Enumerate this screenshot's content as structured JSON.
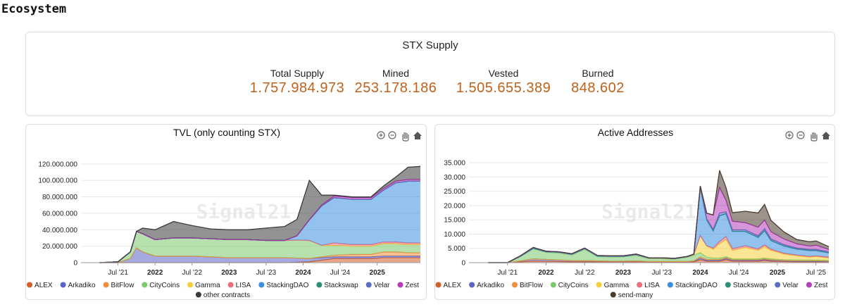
{
  "page": {
    "title": "Ecosystem"
  },
  "supply": {
    "title": "STX Supply",
    "stats": [
      {
        "label": "Total Supply",
        "value": "1.757.984.973"
      },
      {
        "label": "Mined",
        "value": "253.178.186"
      },
      {
        "label": "Vested",
        "value": "1.505.655.389"
      },
      {
        "label": "Burned",
        "value": "848.602"
      }
    ]
  },
  "toolbar_icons": [
    "zoom-in-icon",
    "zoom-out-icon",
    "pan-hand-icon",
    "home-icon"
  ],
  "watermark": "Signal21",
  "chart_data": [
    {
      "id": "tvl",
      "type": "area",
      "title": "TVL (only counting STX)",
      "stacked": true,
      "x_ticks": [
        "Jul '21",
        "2022",
        "Jul '22",
        "2023",
        "Jul '23",
        "2024",
        "Jul '24",
        "2025"
      ],
      "x_bold": [
        "2022",
        "2023",
        "2024",
        "2025"
      ],
      "y_ticks": [
        "0",
        "20.000.000",
        "40.000.000",
        "60.000.000",
        "80.000.000",
        "100.000.000",
        "120.000.000"
      ],
      "ylim": [
        0,
        125000000
      ],
      "x": [
        "2021-04",
        "2021-07",
        "2021-09",
        "2021-10",
        "2021-11",
        "2022-01",
        "2022-04",
        "2022-07",
        "2022-10",
        "2023-01",
        "2023-04",
        "2023-07",
        "2023-10",
        "2023-12",
        "2024-02",
        "2024-04",
        "2024-06",
        "2024-09",
        "2024-12",
        "2025-02",
        "2025-04",
        "2025-06",
        "2025-08"
      ],
      "series": [
        {
          "name": "ALEX",
          "color": "#d35f2b",
          "values": [
            0,
            0,
            0,
            0,
            0,
            0,
            0,
            0,
            0,
            0,
            0,
            0,
            0,
            500000,
            1000000,
            3000000,
            5000000,
            5000000,
            5000000,
            6000000,
            6000000,
            6000000,
            6000000
          ]
        },
        {
          "name": "Arkadiko",
          "color": "#5a63c9",
          "values": [
            0,
            0,
            5000000,
            18000000,
            13000000,
            8000000,
            8000000,
            8000000,
            7000000,
            6000000,
            6000000,
            6000000,
            6000000,
            5000000,
            4000000,
            3000000,
            2000000,
            2000000,
            2000000,
            2000000,
            2000000,
            2000000,
            2000000
          ]
        },
        {
          "name": "BitFlow",
          "color": "#f28e3c",
          "values": [
            0,
            0,
            0,
            0,
            0,
            0,
            0,
            0,
            0,
            0,
            0,
            0,
            0,
            0,
            0,
            1000000,
            2000000,
            3000000,
            3000000,
            5000000,
            5000000,
            4000000,
            4000000
          ]
        },
        {
          "name": "CityCoins",
          "color": "#7ac96b",
          "values": [
            0,
            1000000,
            8000000,
            20000000,
            22000000,
            20000000,
            22000000,
            22000000,
            22000000,
            22000000,
            22000000,
            21000000,
            21000000,
            22000000,
            22000000,
            14000000,
            12000000,
            10000000,
            10000000,
            10000000,
            10000000,
            10000000,
            10000000
          ]
        },
        {
          "name": "Gamma",
          "color": "#f5cf3c",
          "values": [
            0,
            0,
            0,
            0,
            0,
            0,
            0,
            0,
            0,
            0,
            0,
            0,
            0,
            0,
            0,
            0,
            0,
            0,
            0,
            0,
            0,
            0,
            0
          ]
        },
        {
          "name": "LISA",
          "color": "#ee6f7c",
          "values": [
            0,
            0,
            0,
            0,
            0,
            0,
            0,
            0,
            0,
            0,
            0,
            0,
            0,
            0,
            0,
            0,
            3000000,
            2000000,
            2000000,
            2000000,
            2000000,
            2000000,
            2000000
          ]
        },
        {
          "name": "StackingDAO",
          "color": "#3b8fe0",
          "values": [
            0,
            0,
            0,
            0,
            0,
            0,
            0,
            0,
            0,
            0,
            0,
            0,
            0,
            5000000,
            25000000,
            48000000,
            55000000,
            55000000,
            55000000,
            63000000,
            72000000,
            75000000,
            75000000
          ]
        },
        {
          "name": "Stackswap",
          "color": "#2e8f78",
          "values": [
            0,
            0,
            0,
            0,
            0,
            0,
            0,
            0,
            0,
            0,
            0,
            0,
            0,
            0,
            0,
            0,
            0,
            0,
            0,
            0,
            0,
            0,
            0
          ]
        },
        {
          "name": "Velar",
          "color": "#5b6ec4",
          "values": [
            0,
            0,
            0,
            0,
            0,
            0,
            0,
            0,
            0,
            0,
            0,
            0,
            0,
            0,
            0,
            0,
            0,
            0,
            0,
            0,
            0,
            0,
            0
          ]
        },
        {
          "name": "Zest",
          "color": "#b23eb8",
          "values": [
            0,
            0,
            0,
            0,
            0,
            0,
            0,
            0,
            0,
            0,
            0,
            0,
            0,
            0,
            0,
            1000000,
            2000000,
            2000000,
            2000000,
            2000000,
            2000000,
            2000000,
            2000000
          ]
        },
        {
          "name": "other contracts",
          "color": "#3a3a3a",
          "values": [
            0,
            0,
            0,
            0,
            7000000,
            12000000,
            20000000,
            15000000,
            12000000,
            12000000,
            12000000,
            15000000,
            17000000,
            20000000,
            48000000,
            12000000,
            1000000,
            1000000,
            1000000,
            3000000,
            5000000,
            15000000,
            16000000
          ]
        }
      ],
      "legend_rows": [
        [
          "ALEX",
          "Arkadiko",
          "BitFlow",
          "CityCoins",
          "Gamma",
          "LISA",
          "StackingDAO",
          "Stackswap",
          "Velar",
          "Zest"
        ],
        [
          "other contracts"
        ]
      ]
    },
    {
      "id": "active",
      "type": "area",
      "title": "Active Addresses",
      "stacked": true,
      "x_ticks": [
        "Jul '21",
        "2022",
        "Jul '22",
        "2023",
        "Jul '23",
        "2024",
        "Jul '24",
        "2025",
        "Jul '25"
      ],
      "x_bold": [
        "2022",
        "2023",
        "2024",
        "2025"
      ],
      "y_ticks": [
        "0",
        "5.000",
        "10.000",
        "15.000",
        "20.000",
        "25.000",
        "30.000",
        "35.000"
      ],
      "ylim": [
        0,
        36000
      ],
      "x": [
        "2021-04",
        "2021-07",
        "2021-09",
        "2021-11",
        "2022-01",
        "2022-03",
        "2022-05",
        "2022-07",
        "2022-09",
        "2022-11",
        "2023-01",
        "2023-03",
        "2023-05",
        "2023-07",
        "2023-09",
        "2023-11",
        "2023-12",
        "2024-01",
        "2024-02",
        "2024-03",
        "2024-04",
        "2024-05",
        "2024-06",
        "2024-08",
        "2024-10",
        "2024-11",
        "2024-12",
        "2025-02",
        "2025-04",
        "2025-06",
        "2025-07",
        "2025-09"
      ],
      "series": [
        {
          "name": "ALEX",
          "color": "#d35f2b",
          "values": [
            0,
            0,
            300,
            600,
            500,
            400,
            300,
            300,
            300,
            200,
            200,
            300,
            200,
            200,
            200,
            200,
            300,
            1000,
            500,
            500,
            500,
            1000,
            500,
            500,
            500,
            800,
            500,
            400,
            300,
            300,
            300,
            200
          ]
        },
        {
          "name": "Arkadiko",
          "color": "#5a63c9",
          "values": [
            0,
            0,
            300,
            700,
            600,
            500,
            400,
            400,
            300,
            300,
            300,
            300,
            200,
            200,
            200,
            200,
            300,
            500,
            300,
            300,
            300,
            400,
            300,
            300,
            300,
            300,
            300,
            200,
            200,
            200,
            200,
            200
          ]
        },
        {
          "name": "BitFlow",
          "color": "#f28e3c",
          "values": [
            0,
            0,
            0,
            0,
            0,
            0,
            0,
            0,
            0,
            0,
            0,
            0,
            0,
            0,
            0,
            0,
            0,
            500,
            300,
            300,
            300,
            300,
            200,
            200,
            200,
            200,
            200,
            200,
            200,
            200,
            200,
            200
          ]
        },
        {
          "name": "CityCoins",
          "color": "#7ac96b",
          "values": [
            0,
            0,
            1500,
            3500,
            2500,
            2500,
            2000,
            4000,
            1500,
            1500,
            1500,
            2000,
            1000,
            1000,
            800,
            1500,
            2000,
            1500,
            800,
            500,
            500,
            400,
            300,
            300,
            300,
            300,
            300,
            200,
            200,
            200,
            200,
            200
          ]
        },
        {
          "name": "Gamma",
          "color": "#f5cf3c",
          "values": [
            0,
            0,
            100,
            200,
            200,
            200,
            200,
            200,
            200,
            200,
            200,
            200,
            200,
            200,
            200,
            200,
            300,
            6000,
            4000,
            3000,
            5000,
            6000,
            3000,
            4000,
            3000,
            4000,
            3000,
            2000,
            1500,
            1000,
            1200,
            800
          ]
        },
        {
          "name": "LISA",
          "color": "#ee6f7c",
          "values": [
            0,
            0,
            0,
            0,
            0,
            0,
            0,
            0,
            0,
            0,
            0,
            0,
            0,
            0,
            0,
            0,
            0,
            0,
            0,
            500,
            800,
            1000,
            600,
            600,
            500,
            600,
            400,
            300,
            300,
            300,
            300,
            300
          ]
        },
        {
          "name": "StackingDAO",
          "color": "#3b8fe0",
          "values": [
            0,
            0,
            0,
            0,
            0,
            0,
            0,
            0,
            0,
            0,
            0,
            0,
            0,
            0,
            0,
            0,
            0,
            17000,
            9000,
            6000,
            9000,
            8000,
            6000,
            5000,
            4000,
            5000,
            3000,
            2500,
            2000,
            2000,
            1800,
            1500
          ]
        },
        {
          "name": "Stackswap",
          "color": "#2e8f78",
          "values": [
            0,
            0,
            200,
            300,
            200,
            200,
            200,
            200,
            200,
            200,
            200,
            200,
            100,
            100,
            100,
            100,
            100,
            100,
            100,
            100,
            100,
            100,
            100,
            100,
            100,
            100,
            100,
            100,
            100,
            100,
            100,
            100
          ]
        },
        {
          "name": "Velar",
          "color": "#5b6ec4",
          "values": [
            0,
            0,
            0,
            0,
            0,
            0,
            0,
            0,
            0,
            0,
            0,
            0,
            0,
            0,
            0,
            0,
            0,
            200,
            300,
            500,
            800,
            600,
            500,
            500,
            500,
            600,
            500,
            400,
            300,
            300,
            300,
            300
          ]
        },
        {
          "name": "Zest",
          "color": "#b23eb8",
          "values": [
            0,
            0,
            0,
            0,
            0,
            0,
            0,
            0,
            0,
            0,
            0,
            0,
            0,
            0,
            0,
            0,
            0,
            0,
            2000,
            5000,
            9000,
            4000,
            3000,
            2500,
            3000,
            3000,
            2500,
            2000,
            1500,
            1200,
            1500,
            800
          ]
        },
        {
          "name": "send-many",
          "color": "#4a3b2f",
          "values": [
            0,
            0,
            0,
            0,
            0,
            0,
            0,
            0,
            0,
            0,
            0,
            0,
            0,
            0,
            0,
            0,
            0,
            0,
            0,
            0,
            6000,
            4500,
            3000,
            4000,
            5000,
            5500,
            4000,
            2500,
            1500,
            1500,
            1500,
            1000
          ]
        }
      ],
      "legend_rows": [
        [
          "ALEX",
          "Arkadiko",
          "BitFlow",
          "CityCoins",
          "Gamma",
          "LISA",
          "StackingDAO",
          "Stackswap",
          "Velar",
          "Zest"
        ],
        [
          "send-many"
        ]
      ]
    }
  ]
}
